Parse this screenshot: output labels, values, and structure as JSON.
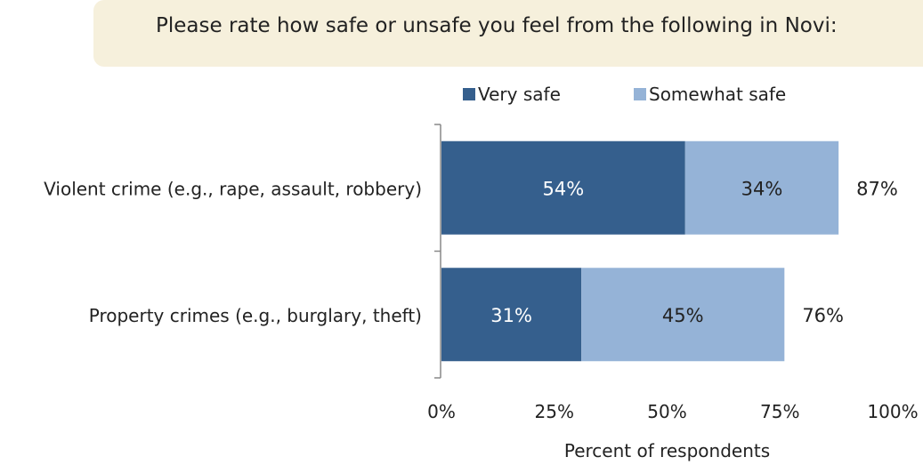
{
  "header": {
    "title": "Please rate how safe or unsafe you feel from the following in Novi:"
  },
  "chart_data": {
    "type": "bar",
    "orientation": "horizontal",
    "stacked": true,
    "categories": [
      "Violent crime (e.g., rape, assault, robbery)",
      "Property crimes (e.g., burglary, theft)"
    ],
    "series": [
      {
        "name": "Very safe",
        "values": [
          54,
          31
        ],
        "labels": [
          "54%",
          "31%"
        ],
        "color": "#355f8d"
      },
      {
        "name": "Somewhat safe",
        "values": [
          34,
          45
        ],
        "labels": [
          "34%",
          "45%"
        ],
        "color": "#95b3d7"
      }
    ],
    "totals": [
      "87%",
      "76%"
    ],
    "xlabel": "Percent of respondents",
    "xlim": [
      0,
      100
    ],
    "xticks": [
      0,
      25,
      50,
      75,
      100
    ],
    "xtick_labels": [
      "0%",
      "25%",
      "50%",
      "75%",
      "100%"
    ],
    "legend_position": "top",
    "grid": false
  }
}
